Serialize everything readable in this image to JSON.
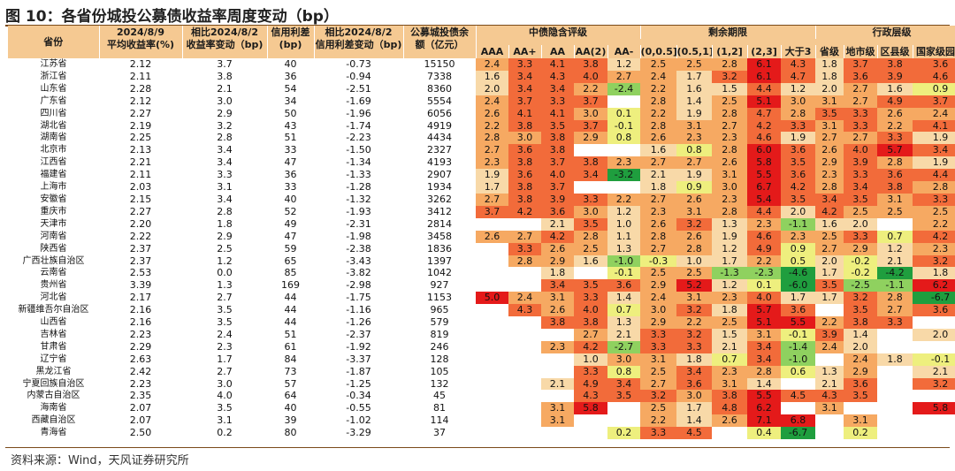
{
  "title": "图 10：各省份城投公募债收益率周度变动（bp）",
  "source": "资料来源：Wind，天风证券研究所",
  "headers": {
    "province": "省份",
    "yield_top": "2024/8/9",
    "yield_bottom": "平均收益率(%)",
    "chg_top": "相比2024/8/2",
    "chg_bottom": "收益率变动（bp)",
    "spread_top": "信用利差",
    "spread_bottom": "(bp)",
    "spread_chg_top": "相比2024/8/2",
    "spread_chg_bottom": "信用利差变动（bp)",
    "balance_top": "公募城投债余",
    "balance_bottom": "额（亿元）",
    "rating_group": "中债隐含评级",
    "rating_cols": [
      "AAA",
      "AA+",
      "AA",
      "AA(2)",
      "AA-"
    ],
    "term_group": "剩余期限",
    "term_cols": [
      "(0,0.5]",
      "(0.5,1]",
      "(1,2]",
      "(2,3]",
      "大于3"
    ],
    "admin_group": "行政层级",
    "admin_cols": [
      "省级",
      "地市级",
      "区县级",
      "国家级园区"
    ]
  },
  "colors": {
    "header_bg": "#f5c992",
    "positive_scale": [
      "#f8d9a8",
      "#f6a962",
      "#f26b3a",
      "#e41a1a"
    ],
    "negative_scale": [
      "#eeef7e",
      "#8fd15f",
      "#1f9e3e"
    ],
    "rule": "#7a4a1a"
  },
  "rows": [
    {
      "name": "江苏省",
      "c": [
        "2.12",
        "3.7",
        "40",
        "-0.73",
        "15150",
        "2.4",
        "3.3",
        "4.1",
        "3.8",
        "1.2",
        "2.5",
        "2.5",
        "2.8",
        "6.1",
        "4.3",
        "1.8",
        "3.7",
        "3.8",
        "3.6"
      ]
    },
    {
      "name": "浙江省",
      "c": [
        "2.11",
        "3.8",
        "36",
        "-0.94",
        "7338",
        "1.6",
        "3.4",
        "4.3",
        "4.0",
        "2.7",
        "2.4",
        "1.7",
        "3.2",
        "6.1",
        "4.7",
        "1.8",
        "3.6",
        "3.9",
        "4.6"
      ]
    },
    {
      "name": "山东省",
      "c": [
        "2.28",
        "2.1",
        "54",
        "-2.51",
        "8360",
        "2.0",
        "3.4",
        "3.4",
        "2.2",
        "-2.4",
        "2.2",
        "1.6",
        "1.5",
        "4.4",
        "1.2",
        "2.0",
        "2.7",
        "1.6",
        "0.9"
      ]
    },
    {
      "name": "广东省",
      "c": [
        "2.12",
        "3.0",
        "34",
        "-1.69",
        "5554",
        "2.4",
        "3.7",
        "3.3",
        "3.7",
        "",
        "2.8",
        "1.4",
        "2.5",
        "5.1",
        "3.0",
        "3.1",
        "2.7",
        "4.9",
        "3.7"
      ]
    },
    {
      "name": "四川省",
      "c": [
        "2.27",
        "2.9",
        "50",
        "-1.96",
        "6056",
        "2.6",
        "4.1",
        "4.1",
        "3.0",
        "0.1",
        "2.2",
        "1.9",
        "2.8",
        "4.7",
        "2.8",
        "3.5",
        "3.3",
        "2.6",
        "2.4"
      ]
    },
    {
      "name": "湖北省",
      "c": [
        "2.19",
        "3.2",
        "43",
        "-1.74",
        "4919",
        "2.2",
        "3.8",
        "3.5",
        "3.7",
        "-0.1",
        "2.8",
        "3.1",
        "2.7",
        "4.2",
        "3.3",
        "3.1",
        "3.3",
        "2.2",
        "4.1"
      ]
    },
    {
      "name": "湖南省",
      "c": [
        "2.25",
        "2.8",
        "51",
        "-2.23",
        "4434",
        "2.8",
        "3.0",
        "3.8",
        "2.9",
        "0.8",
        "2.6",
        "2.3",
        "2.3",
        "4.6",
        "1.9",
        "2.7",
        "2.7",
        "3.3",
        "1.9"
      ]
    },
    {
      "name": "北京市",
      "c": [
        "2.13",
        "3.4",
        "33",
        "-1.50",
        "2327",
        "2.7",
        "3.6",
        "3.8",
        "",
        "",
        "1.6",
        "0.8",
        "2.8",
        "6.0",
        "3.6",
        "2.6",
        "4.0",
        "5.7",
        "3.4"
      ]
    },
    {
      "name": "江西省",
      "c": [
        "2.21",
        "3.4",
        "47",
        "-1.34",
        "4193",
        "2.3",
        "3.8",
        "3.7",
        "3.8",
        "2.3",
        "2.7",
        "2.7",
        "2.6",
        "5.8",
        "3.5",
        "2.9",
        "3.9",
        "2.8",
        "1.9"
      ]
    },
    {
      "name": "福建省",
      "c": [
        "2.11",
        "3.3",
        "36",
        "-1.33",
        "2907",
        "1.9",
        "3.6",
        "4.0",
        "3.4",
        "-3.2",
        "2.1",
        "1.9",
        "3.1",
        "5.5",
        "3.6",
        "2.3",
        "3.3",
        "3.6",
        "4.4"
      ]
    },
    {
      "name": "上海市",
      "c": [
        "2.03",
        "3.1",
        "33",
        "-1.28",
        "1934",
        "1.7",
        "3.8",
        "3.7",
        "",
        "",
        "1.8",
        "0.9",
        "3.0",
        "6.7",
        "4.2",
        "2.8",
        "3.4",
        "3.8",
        "2.8"
      ]
    },
    {
      "name": "安徽省",
      "c": [
        "2.15",
        "3.4",
        "40",
        "-1.32",
        "3262",
        "2.7",
        "3.8",
        "3.9",
        "3.3",
        "2.2",
        "2.7",
        "2.6",
        "2.3",
        "5.4",
        "3.5",
        "3.4",
        "3.5",
        "3.1",
        "3.3"
      ]
    },
    {
      "name": "重庆市",
      "c": [
        "2.27",
        "2.8",
        "52",
        "-1.93",
        "3412",
        "3.7",
        "4.2",
        "3.6",
        "3.0",
        "1.2",
        "2.3",
        "3.1",
        "2.8",
        "4.4",
        "2.0",
        "4.2",
        "2.5",
        "2.5",
        "2.5"
      ]
    },
    {
      "name": "天津市",
      "c": [
        "2.20",
        "1.8",
        "49",
        "-2.31",
        "2814",
        "",
        "",
        "2.1",
        "3.5",
        "1.0",
        "2.6",
        "3.2",
        "1.3",
        "2.3",
        "-1.1",
        "1.6",
        "2.0",
        "",
        "2.2"
      ]
    },
    {
      "name": "河南省",
      "c": [
        "2.22",
        "2.9",
        "47",
        "-1.98",
        "3458",
        "2.6",
        "2.7",
        "4.2",
        "2.8",
        "1.1",
        "2.8",
        "2.6",
        "1.9",
        "4.6",
        "2.3",
        "2.5",
        "3.3",
        "0.7",
        "4.2"
      ]
    },
    {
      "name": "陕西省",
      "c": [
        "2.37",
        "2.5",
        "59",
        "-2.38",
        "1836",
        "",
        "3.3",
        "2.6",
        "2.5",
        "1.3",
        "2.7",
        "2.8",
        "1.2",
        "4.9",
        "0.9",
        "2.7",
        "2.9",
        "1.2",
        "2.3"
      ]
    },
    {
      "name": "广西壮族自治区",
      "c": [
        "2.37",
        "1.2",
        "65",
        "-3.43",
        "1397",
        "",
        "2.8",
        "2.9",
        "1.6",
        "-1.0",
        "-0.3",
        "1.0",
        "1.7",
        "2.2",
        "0.5",
        "2.0",
        "-0.2",
        "2.1",
        "3.2"
      ]
    },
    {
      "name": "云南省",
      "c": [
        "2.53",
        "0.0",
        "85",
        "-3.82",
        "1042",
        "",
        "",
        "1.8",
        "",
        "-0.1",
        "2.5",
        "2.5",
        "-1.3",
        "-2.3",
        "-4.6",
        "1.7",
        "-0.2",
        "-4.2",
        "1.8"
      ]
    },
    {
      "name": "贵州省",
      "c": [
        "3.39",
        "1.3",
        "169",
        "-2.98",
        "927",
        "",
        "",
        "3.4",
        "3.5",
        "3.6",
        "2.9",
        "5.2",
        "1.2",
        "0.1",
        "-6.0",
        "3.5",
        "-2.5",
        "-1.1",
        "6.2"
      ]
    },
    {
      "name": "河北省",
      "c": [
        "2.17",
        "2.7",
        "44",
        "-1.75",
        "1153",
        "5.0",
        "2.4",
        "3.1",
        "3.3",
        "1.4",
        "2.4",
        "3.1",
        "2.3",
        "4.0",
        "1.7",
        "1.7",
        "3.2",
        "2.8",
        "-6.7"
      ]
    },
    {
      "name": "新疆维吾尔自治区",
      "c": [
        "2.16",
        "3.5",
        "44",
        "-1.16",
        "965",
        "",
        "4.3",
        "2.6",
        "4.0",
        "0.7",
        "3.0",
        "3.2",
        "1.8",
        "5.7",
        "3.6",
        "",
        "3.5",
        "2.7",
        "3.6"
      ]
    },
    {
      "name": "山西省",
      "c": [
        "2.16",
        "3.5",
        "44",
        "-1.26",
        "579",
        "",
        "",
        "3.8",
        "3.8",
        "1.3",
        "2.9",
        "2.2",
        "2.5",
        "5.1",
        "5.5",
        "2.2",
        "3.8",
        "3.3",
        ""
      ]
    },
    {
      "name": "吉林省",
      "c": [
        "2.23",
        "2.4",
        "51",
        "-2.37",
        "819",
        "",
        "",
        "",
        "2.7",
        "2.1",
        "3.3",
        "3.2",
        "1.5",
        "3.1",
        "-0.1",
        "3.9",
        "1.4",
        "",
        "2.0"
      ]
    },
    {
      "name": "甘肃省",
      "c": [
        "2.29",
        "2.3",
        "61",
        "-1.92",
        "246",
        "",
        "",
        "2.3",
        "4.2",
        "-2.7",
        "3.3",
        "3.3",
        "2.1",
        "3.4",
        "-1.4",
        "2.4",
        "2.0",
        "",
        ""
      ]
    },
    {
      "name": "辽宁省",
      "c": [
        "2.63",
        "1.7",
        "84",
        "-3.37",
        "128",
        "",
        "",
        "",
        "1.0",
        "3.0",
        "3.1",
        "1.8",
        "0.7",
        "3.4",
        "-1.0",
        "",
        "2.4",
        "1.8",
        "-0.1"
      ]
    },
    {
      "name": "黑龙江省",
      "c": [
        "2.42",
        "2.7",
        "73",
        "-1.87",
        "105",
        "",
        "",
        "",
        "3.3",
        "0.8",
        "2.5",
        "3.4",
        "2.3",
        "2.8",
        "0.6",
        "1.3",
        "2.9",
        "",
        "2.1"
      ]
    },
    {
      "name": "宁夏回族自治区",
      "c": [
        "2.23",
        "3.0",
        "57",
        "-1.25",
        "132",
        "",
        "",
        "2.1",
        "4.9",
        "3.4",
        "2.7",
        "3.6",
        "3.1",
        "1.4",
        "",
        "2.1",
        "3.6",
        "",
        "3.2"
      ]
    },
    {
      "name": "内蒙古自治区",
      "c": [
        "2.35",
        "4.0",
        "64",
        "-0.34",
        "45",
        "",
        "",
        "",
        "4.3",
        "3.5",
        "3.2",
        "3.0",
        "3.8",
        "5.5",
        "4.5",
        "4.3",
        "3.5",
        "",
        ""
      ]
    },
    {
      "name": "海南省",
      "c": [
        "2.07",
        "3.5",
        "40",
        "-0.55",
        "81",
        "",
        "",
        "3.1",
        "5.8",
        "",
        "2.5",
        "1.7",
        "4.8",
        "6.2",
        "",
        "3.1",
        "",
        "",
        "5.8"
      ]
    },
    {
      "name": "西藏自治区",
      "c": [
        "2.07",
        "3.1",
        "39",
        "-1.02",
        "114",
        "",
        "",
        "3.1",
        "",
        "",
        "2.2",
        "1.4",
        "2.6",
        "7.1",
        "6.8",
        "",
        "3.1",
        "",
        ""
      ]
    },
    {
      "name": "青海省",
      "c": [
        "2.50",
        "0.2",
        "80",
        "-3.29",
        "37",
        "",
        "",
        "",
        "",
        "0.2",
        "3.3",
        "4.5",
        "",
        "0.4",
        "-6.7",
        "",
        "0.2",
        "",
        ""
      ]
    }
  ]
}
